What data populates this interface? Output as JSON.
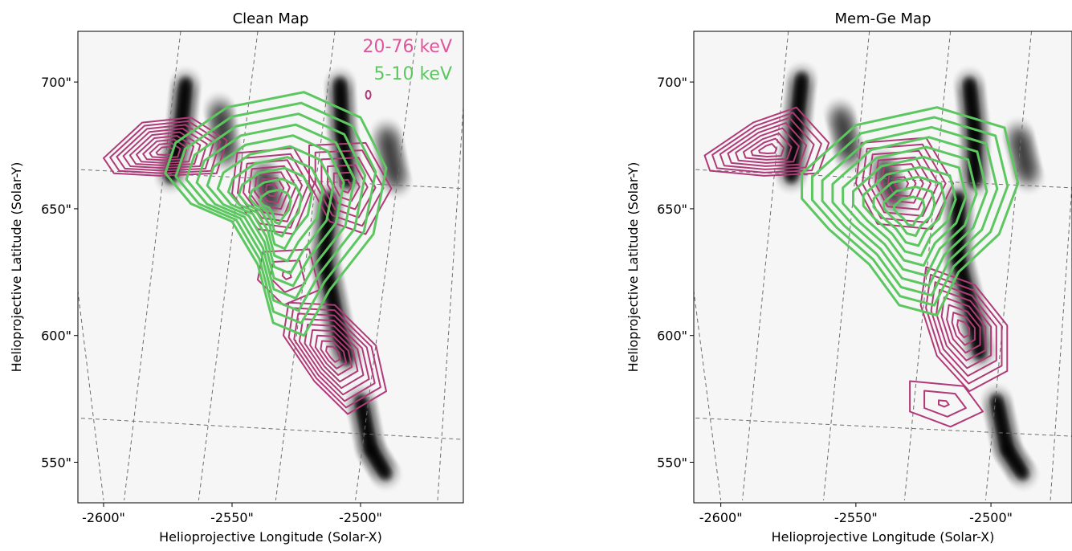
{
  "chart_data": [
    {
      "type": "contour",
      "title": "Clean Map",
      "xlabel": "Helioprojective Longitude (Solar-X)",
      "ylabel": "Helioprojective Latitude (Solar-Y)",
      "xlim": [
        -2610,
        -2460
      ],
      "ylim": [
        534,
        720
      ],
      "xticks": [
        -2600,
        -2550,
        -2500
      ],
      "xtick_labels": [
        "-2600\"",
        "-2550\"",
        "-2500\""
      ],
      "yticks": [
        550,
        600,
        650,
        700
      ],
      "ytick_labels": [
        "550\"",
        "600\"",
        "650\"",
        "700\""
      ],
      "grid": true,
      "background": "grayscale intensity image",
      "legend": "top-right",
      "series": [
        {
          "name": "20-76 keV",
          "color": "#b03a78",
          "levels": 9,
          "peaks": [
            {
              "x": -2568,
              "y": 677
            },
            {
              "x": -2535,
              "y": 659
            },
            {
              "x": -2505,
              "y": 655
            },
            {
              "x": -2505,
              "y": 590
            }
          ]
        },
        {
          "name": "5-10 keV",
          "color": "#5cc760",
          "levels": 10,
          "peaks": [
            {
              "x": -2520,
              "y": 662
            }
          ]
        }
      ]
    },
    {
      "type": "contour",
      "title": "Mem-Ge Map",
      "xlabel": "Helioprojective Longitude (Solar-X)",
      "ylabel": "Helioprojective Latitude (Solar-Y)",
      "xlim": [
        -2610,
        -2470
      ],
      "ylim": [
        534,
        720
      ],
      "xticks": [
        -2600,
        -2550,
        -2500
      ],
      "xtick_labels": [
        "-2600\"",
        "-2550\"",
        "-2500\""
      ],
      "yticks": [
        550,
        600,
        650,
        700
      ],
      "ytick_labels": [
        "550\"",
        "600\"",
        "650\"",
        "700\""
      ],
      "grid": true,
      "background": "grayscale intensity image",
      "series": [
        {
          "color": "#b03a78",
          "levels": 8,
          "peaks": [
            {
              "x": -2572,
              "y": 678
            },
            {
              "x": -2532,
              "y": 661
            },
            {
              "x": -2505,
              "y": 594
            },
            {
              "x": -2519,
              "y": 573
            }
          ]
        },
        {
          "color": "#5cc760",
          "levels": 10,
          "peaks": [
            {
              "x": -2522,
              "y": 660
            }
          ]
        }
      ]
    }
  ]
}
